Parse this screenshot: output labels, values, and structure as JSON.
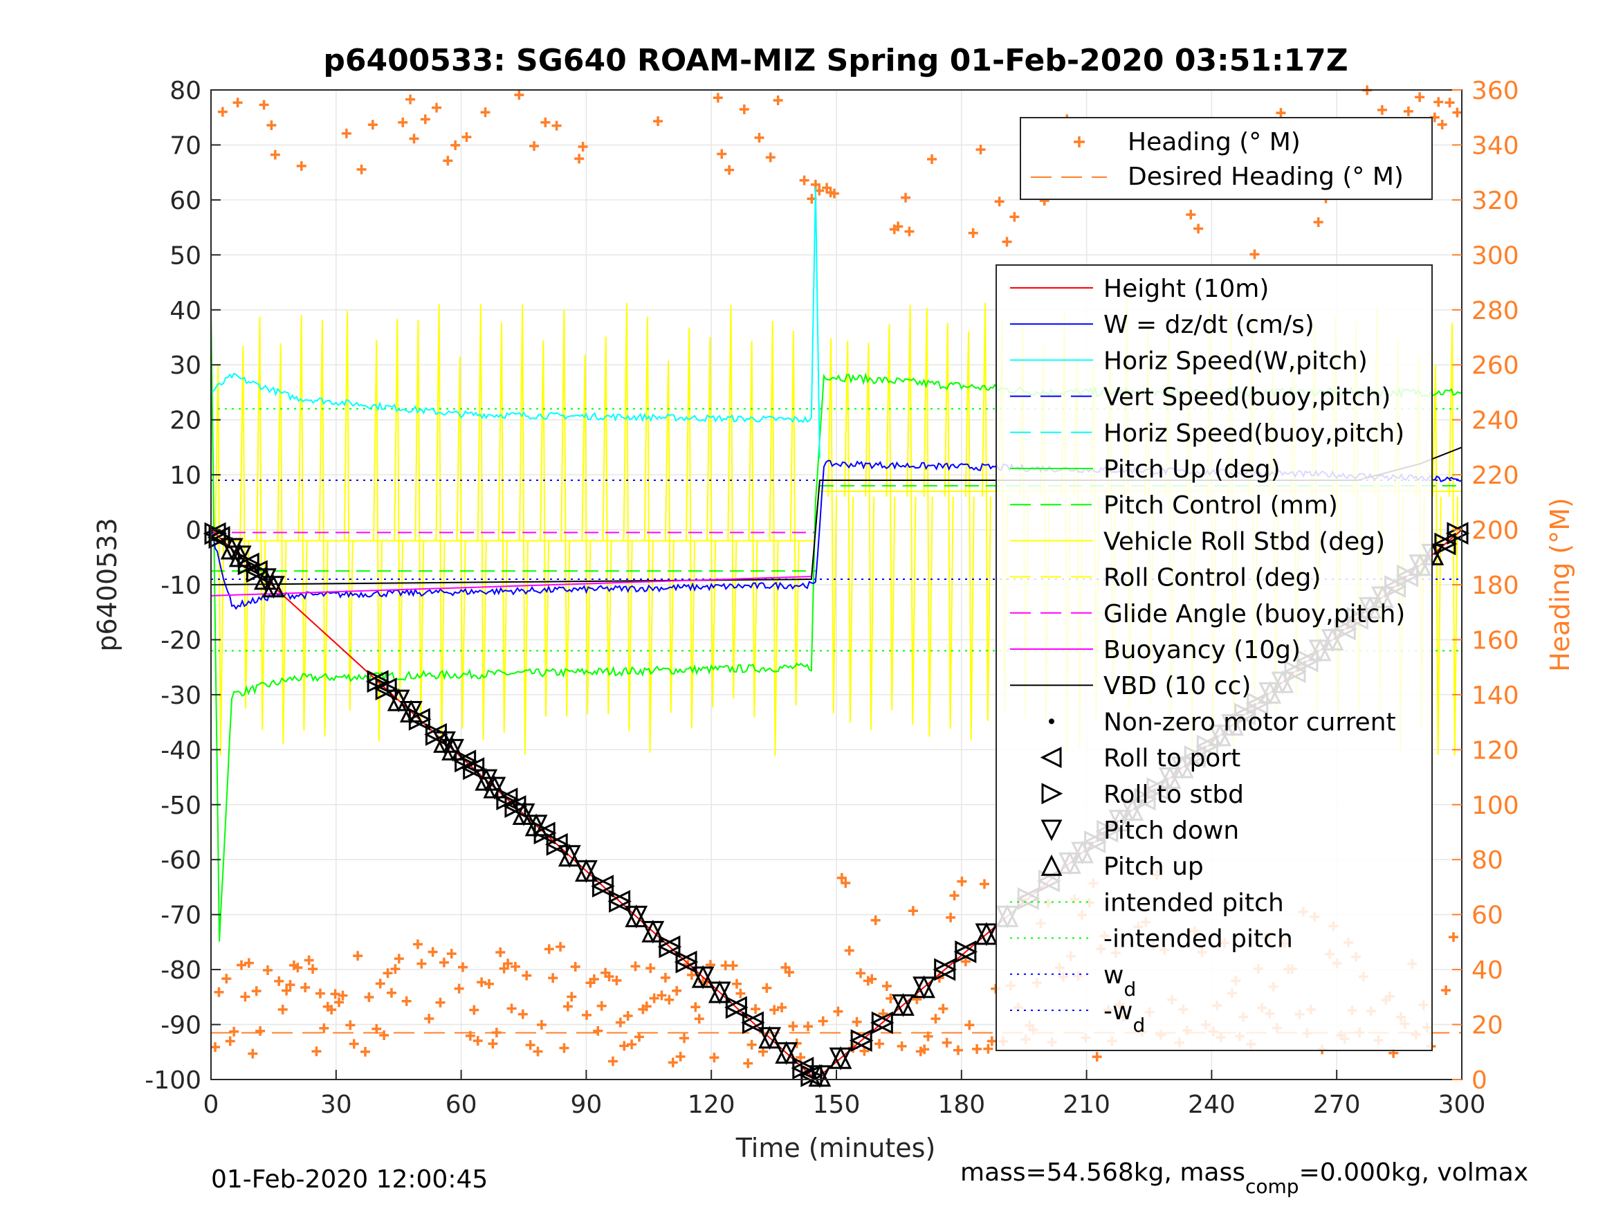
{
  "chart_data": {
    "type": "line",
    "title": "p6400533: SG640 ROAM-MIZ Spring 01-Feb-2020 03:51:17Z",
    "xlabel": "Time (minutes)",
    "ylabel": "p6400533",
    "y2label": "Heading (°M)",
    "xlim": [
      0,
      300
    ],
    "ylim": [
      -100,
      80
    ],
    "y2lim": [
      0,
      360
    ],
    "xticks": [
      0,
      30,
      60,
      90,
      120,
      150,
      180,
      210,
      240,
      270,
      300
    ],
    "yticks": [
      -100,
      -90,
      -80,
      -70,
      -60,
      -50,
      -40,
      -30,
      -20,
      -10,
      0,
      10,
      20,
      30,
      40,
      50,
      60,
      70,
      80
    ],
    "y2ticks": [
      0,
      20,
      40,
      60,
      80,
      100,
      120,
      140,
      160,
      180,
      200,
      220,
      240,
      260,
      280,
      300,
      320,
      340,
      360
    ],
    "grid": true,
    "heading_legend": [
      "Heading (° M)",
      "Desired Heading (° M)"
    ],
    "legend": [
      {
        "label": "Height (10m)",
        "color": "#ff0000",
        "style": "solid"
      },
      {
        "label": "W = dz/dt (cm/s)",
        "color": "#0000ff",
        "style": "solid"
      },
      {
        "label": "Horiz Speed(W,pitch)",
        "color": "#00ffff",
        "style": "solid"
      },
      {
        "label": "Vert Speed(buoy,pitch)",
        "color": "#0000ff",
        "style": "dash"
      },
      {
        "label": "Horiz Speed(buoy,pitch)",
        "color": "#00ffff",
        "style": "dash"
      },
      {
        "label": "Pitch Up (deg)",
        "color": "#00ff00",
        "style": "solid"
      },
      {
        "label": "Pitch Control (mm)",
        "color": "#00ff00",
        "style": "dash"
      },
      {
        "label": "Vehicle Roll Stbd (deg)",
        "color": "#ffff00",
        "style": "solid"
      },
      {
        "label": "Roll Control (deg)",
        "color": "#ffff00",
        "style": "dash"
      },
      {
        "label": "Glide Angle (buoy,pitch)",
        "color": "#ff00ff",
        "style": "dash"
      },
      {
        "label": "Buoyancy (10g)",
        "color": "#ff00ff",
        "style": "solid"
      },
      {
        "label": "VBD (10 cc)",
        "color": "#000000",
        "style": "solid"
      },
      {
        "label": "Non-zero motor current",
        "color": "#000000",
        "style": "dot"
      },
      {
        "label": "Roll to port",
        "color": "#000000",
        "style": "tri-left"
      },
      {
        "label": "Roll to stbd",
        "color": "#000000",
        "style": "tri-right"
      },
      {
        "label": "Pitch down",
        "color": "#000000",
        "style": "tri-down"
      },
      {
        "label": "Pitch up",
        "color": "#000000",
        "style": "tri-up"
      },
      {
        "label": "intended pitch",
        "color": "#00ff00",
        "style": "dotted"
      },
      {
        "label": "-intended pitch",
        "color": "#00ff00",
        "style": "dotted"
      },
      {
        "label": "w",
        "sub": "d",
        "color": "#0000ff",
        "style": "dotted"
      },
      {
        "label": "-w",
        "sub": "d",
        "color": "#0000ff",
        "style": "dotted"
      }
    ],
    "series": [
      {
        "name": "Height (10m)",
        "x": [
          0,
          145,
          300
        ],
        "y": [
          0,
          -100,
          0
        ]
      },
      {
        "name": "W = dz/dt (cm/s)",
        "x": [
          0,
          5,
          15,
          145,
          147,
          270,
          300
        ],
        "y": [
          0,
          -14,
          -12,
          -10,
          12,
          10,
          9
        ]
      },
      {
        "name": "Horiz Speed(W,pitch)",
        "x": [
          0,
          5,
          20,
          60,
          144,
          145,
          146
        ],
        "y": [
          25,
          28,
          24,
          21,
          20,
          62,
          13
        ]
      },
      {
        "name": "Pitch Up (deg)",
        "x": [
          0,
          2,
          5,
          20,
          144,
          145,
          147,
          200,
          300
        ],
        "y": [
          40,
          -75,
          -30,
          -27,
          -25,
          5,
          28,
          25,
          25
        ]
      },
      {
        "name": "VBD (10 cc)",
        "x": [
          0,
          144,
          146,
          275,
          290,
          300
        ],
        "y": [
          -10,
          -9,
          9,
          9,
          12,
          15
        ]
      },
      {
        "name": "intended pitch",
        "x": [
          0,
          300
        ],
        "y": [
          22,
          22
        ]
      },
      {
        "name": "-intended pitch",
        "x": [
          0,
          300
        ],
        "y": [
          -22,
          -22
        ]
      },
      {
        "name": "w",
        "x": [
          0,
          300
        ],
        "y": [
          9,
          9
        ]
      },
      {
        "name": "-w",
        "x": [
          0,
          300
        ],
        "y": [
          -9,
          -9
        ]
      },
      {
        "name": "Glide Angle (buoy,pitch)",
        "x": [
          0,
          145
        ],
        "y": [
          -0.5,
          -0.5
        ]
      },
      {
        "name": "Desired Heading (° M)",
        "x": [
          0,
          300
        ],
        "y2": [
          17,
          17
        ]
      }
    ]
  },
  "footer": {
    "timestamp": "01-Feb-2020 12:00:45",
    "mass_prefix": "mass=54.568kg, mass",
    "mass_sub": "comp",
    "mass_suffix": "=0.000kg, volmax"
  }
}
